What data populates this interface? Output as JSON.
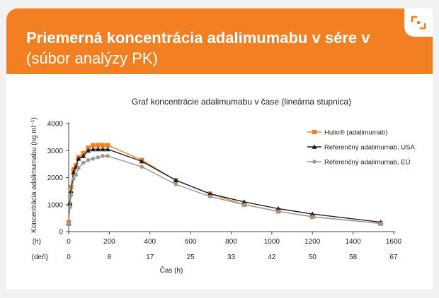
{
  "header": {
    "title_line1": "Priemerná koncentrácia adalimumabu v sére v",
    "title_line2": "(súbor analýzy PK)"
  },
  "icons": {
    "corner": "share-corner-icon"
  },
  "colors": {
    "brand": "#f28023",
    "series1": "#f28023",
    "series2": "#1f1f1f",
    "series3": "#999999"
  },
  "chart_data": {
    "type": "line",
    "title": "Graf koncentrácie adalimumabu v čase (lineárna stupnica)",
    "ylabel": "Koncentrácia adalimumabu (ng ml⁻¹)",
    "xlabel": "Čas (h)",
    "x_row1_label": "(h)",
    "x_row2_label": "(deň)",
    "ylim": [
      0,
      4000
    ],
    "xlim": [
      0,
      1600
    ],
    "yticks": [
      "0",
      "1000",
      "2000",
      "3000",
      "4000"
    ],
    "xticks_hours": [
      "0",
      "200",
      "400",
      "600",
      "800",
      "1000",
      "1200",
      "1400",
      "1600"
    ],
    "xticks_days": [
      "0",
      "8",
      "17",
      "25",
      "33",
      "42",
      "50",
      "58",
      "67"
    ],
    "legend_position": "right",
    "series": [
      {
        "name": "Hulio® (adalimumab)",
        "marker": "square",
        "x": [
          0,
          6,
          12,
          24,
          36,
          48,
          72,
          96,
          120,
          144,
          168,
          192,
          360,
          528,
          696,
          864,
          1032,
          1200,
          1536
        ],
        "y": [
          350,
          1000,
          1650,
          2300,
          2450,
          2750,
          2900,
          3100,
          3200,
          3200,
          3200,
          3200,
          2650,
          1900,
          1400,
          1000,
          750,
          550,
          300
        ]
      },
      {
        "name": "Referenčný adalimumab, USA",
        "marker": "triangle",
        "x": [
          0,
          6,
          12,
          24,
          36,
          48,
          72,
          96,
          120,
          144,
          168,
          192,
          360,
          528,
          696,
          864,
          1032,
          1200,
          1536
        ],
        "y": [
          300,
          1050,
          1500,
          2200,
          2400,
          2700,
          2800,
          3000,
          3050,
          3050,
          3050,
          3050,
          2600,
          1900,
          1400,
          1100,
          850,
          650,
          350
        ]
      },
      {
        "name": "Referenčný adalimumab, EÚ",
        "marker": "circle",
        "x": [
          0,
          6,
          12,
          24,
          36,
          48,
          72,
          96,
          120,
          144,
          168,
          192,
          360,
          528,
          696,
          864,
          1032,
          1200,
          1536
        ],
        "y": [
          300,
          900,
          1350,
          1950,
          2100,
          2350,
          2550,
          2650,
          2700,
          2750,
          2800,
          2800,
          2400,
          1750,
          1300,
          1000,
          750,
          550,
          300
        ]
      }
    ]
  }
}
